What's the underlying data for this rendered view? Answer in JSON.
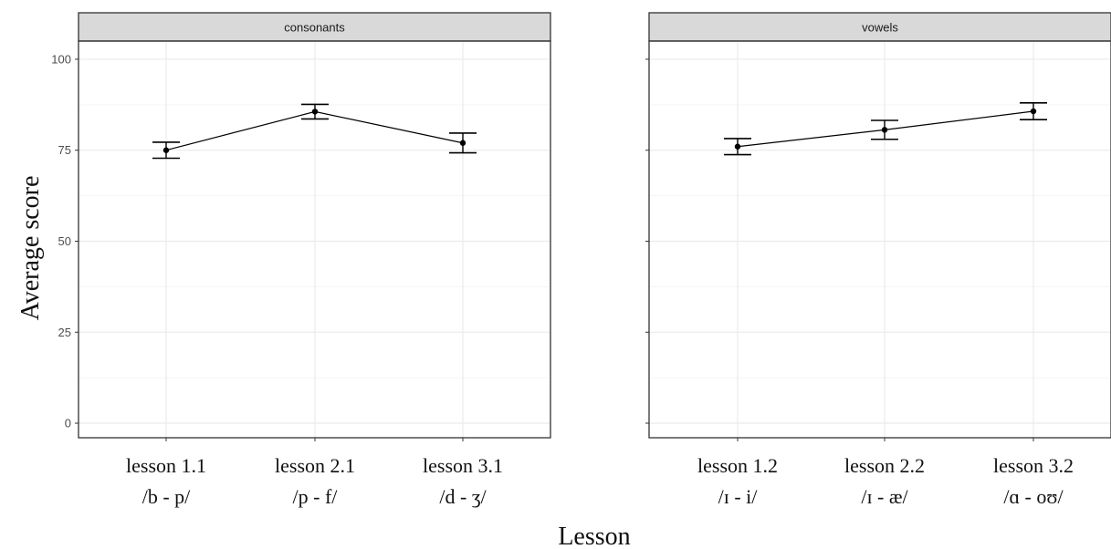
{
  "chart_data": {
    "type": "line",
    "xlabel": "Lesson",
    "ylabel": "Average score",
    "ylim": [
      -4,
      105
    ],
    "yticks": [
      0,
      25,
      50,
      75,
      100
    ],
    "grid": true,
    "legend": "none",
    "colors": {
      "panel_border": "#333333",
      "strip_fill": "#d9d9d9",
      "grid_major": "#ebebeb",
      "grid_minor": "#f5f5f5",
      "line": "#000000"
    },
    "panels": [
      {
        "title": "consonants",
        "categories": [
          {
            "line1": "lesson  1.1",
            "line2": "/b - p/"
          },
          {
            "line1": "lesson  2.1",
            "line2": "/p - f/"
          },
          {
            "line1": "lesson  3.1",
            "line2": "/d - ʒ/"
          }
        ],
        "values": [
          75,
          85.6,
          77
        ],
        "error_low": [
          72.8,
          83.6,
          74.3
        ],
        "error_high": [
          77.2,
          87.6,
          79.7
        ]
      },
      {
        "title": "vowels",
        "categories": [
          {
            "line1": "lesson  1.2",
            "line2": "/ɪ - i/"
          },
          {
            "line1": "lesson  2.2",
            "line2": "/ɪ - æ/"
          },
          {
            "line1": "lesson  3.2",
            "line2": "/ɑ - oʊ/"
          }
        ],
        "values": [
          76,
          80.6,
          85.7
        ],
        "error_low": [
          73.8,
          78,
          83.4
        ],
        "error_high": [
          78.2,
          83.2,
          88
        ]
      }
    ]
  }
}
